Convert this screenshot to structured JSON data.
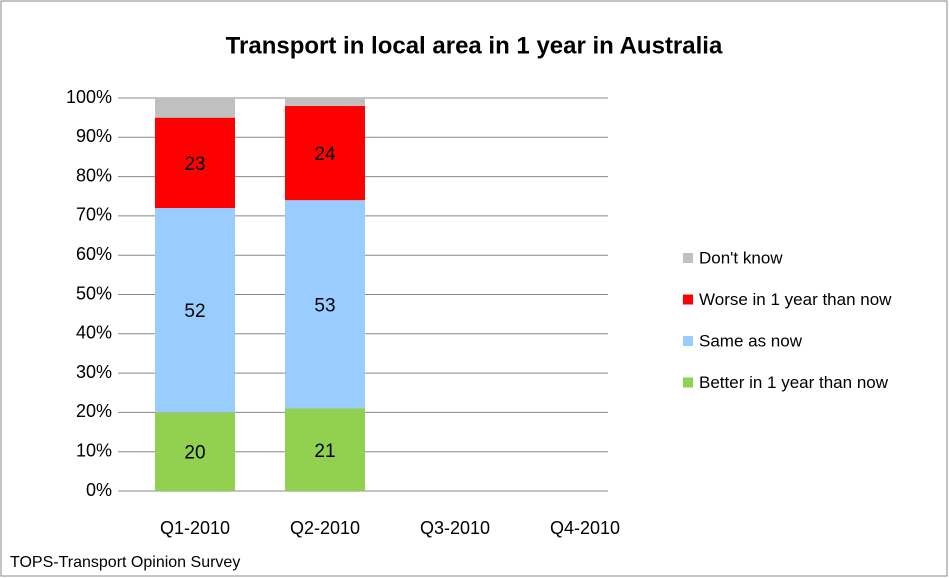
{
  "chart_data": {
    "type": "stacked_bar",
    "title": "Transport in local area in 1 year in Australia",
    "source": "TOPS-Transport Opinion Survey",
    "categories": [
      "Q1-2010",
      "Q2-2010",
      "Q3-2010",
      "Q4-2010"
    ],
    "series": [
      {
        "name": "Better in 1 year than now",
        "color": "#92d050",
        "values": [
          20,
          21,
          null,
          null
        ],
        "labels": true
      },
      {
        "name": "Same as now",
        "color": "#99ccff",
        "values": [
          52,
          53,
          null,
          null
        ],
        "labels": true
      },
      {
        "name": "Worse in 1 year than now",
        "color": "#ff0000",
        "values": [
          23,
          24,
          null,
          null
        ],
        "labels": true
      },
      {
        "name": "Don't know",
        "color": "#c0c0c0",
        "values": [
          5,
          2,
          null,
          null
        ],
        "labels": false
      }
    ],
    "ylim": [
      0,
      100
    ],
    "yticks": [
      {
        "value": 0,
        "label": "0%"
      },
      {
        "value": 10,
        "label": "10%"
      },
      {
        "value": 20,
        "label": "20%"
      },
      {
        "value": 30,
        "label": "30%"
      },
      {
        "value": 40,
        "label": "40%"
      },
      {
        "value": 50,
        "label": "50%"
      },
      {
        "value": 60,
        "label": "60%"
      },
      {
        "value": 70,
        "label": "70%"
      },
      {
        "value": 80,
        "label": "80%"
      },
      {
        "value": 90,
        "label": "90%"
      },
      {
        "value": 100,
        "label": "100%"
      }
    ],
    "grid": true,
    "legend": "right"
  }
}
